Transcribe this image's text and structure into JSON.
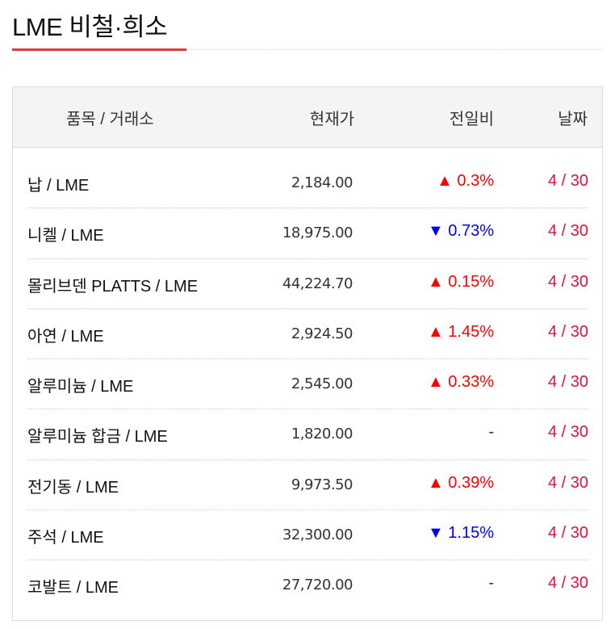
{
  "title": "LME 비철·희소",
  "colors": {
    "accent": "#e03a3a",
    "up": "#ff0000",
    "down": "#0000ff",
    "date": "#dc143c"
  },
  "table": {
    "headers": [
      "품목 / 거래소",
      "현재가",
      "전일비",
      "날짜"
    ],
    "rows": [
      {
        "name": "납 / LME",
        "price": "2,184.00",
        "change": "▲ 0.3%",
        "direction": "up",
        "date": "4 / 30"
      },
      {
        "name": "니켈 / LME",
        "price": "18,975.00",
        "change": "▼ 0.73%",
        "direction": "down",
        "date": "4 / 30"
      },
      {
        "name": "몰리브덴 PLATTS / LME",
        "price": "44,224.70",
        "change": "▲ 0.15%",
        "direction": "up",
        "date": "4 / 30"
      },
      {
        "name": "아연 / LME",
        "price": "2,924.50",
        "change": "▲ 1.45%",
        "direction": "up",
        "date": "4 / 30"
      },
      {
        "name": "알루미늄 / LME",
        "price": "2,545.00",
        "change": "▲ 0.33%",
        "direction": "up",
        "date": "4 / 30"
      },
      {
        "name": "알루미늄 합금 / LME",
        "price": "1,820.00",
        "change": "-",
        "direction": "flat",
        "date": "4 / 30"
      },
      {
        "name": "전기동 / LME",
        "price": "9,973.50",
        "change": "▲ 0.39%",
        "direction": "up",
        "date": "4 / 30"
      },
      {
        "name": "주석 / LME",
        "price": "32,300.00",
        "change": "▼ 1.15%",
        "direction": "down",
        "date": "4 / 30"
      },
      {
        "name": "코발트 / LME",
        "price": "27,720.00",
        "change": "-",
        "direction": "flat",
        "date": "4 / 30"
      }
    ]
  }
}
